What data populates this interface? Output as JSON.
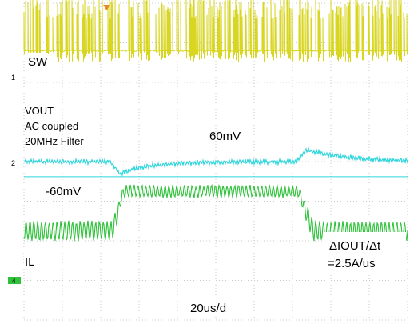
{
  "chart_data": {
    "type": "line",
    "title": "",
    "xlabel": "",
    "ylabel": "",
    "timebase": "20us/d",
    "grid": true,
    "colors": {
      "SW": "#d8d620",
      "VOUT": "#2ad6dc",
      "IL": "#2fc13a",
      "grid": "#c8c8c8",
      "background": "#ffffff"
    },
    "channel_markers": [
      "1",
      "2",
      "4"
    ],
    "series": [
      {
        "name": "SW",
        "signal": "switch node pulses",
        "offset_div": 2.8
      },
      {
        "name": "VOUT",
        "lines": [
          "VOUT",
          "AC coupled",
          "20MHz Filter"
        ],
        "signal": "load transient response",
        "offset_div": 0.0,
        "events": [
          {
            "t_div": 4.5,
            "kind": "undershoot",
            "label": "-60mV",
            "peak_div": -0.3
          },
          {
            "t_div": 14.2,
            "kind": "overshoot",
            "label": "60mV",
            "peak_div": 0.3
          }
        ]
      },
      {
        "name": "IL",
        "signal": "inductor current step",
        "offset_div": -1.75,
        "events": [
          {
            "t_div": 4.6,
            "kind": "rise"
          },
          {
            "t_div": 14.3,
            "kind": "fall"
          }
        ],
        "slew_label": [
          "ΔIOUT/Δt",
          "=2.5A/us"
        ]
      }
    ],
    "reference_line": {
      "label": "-60mV",
      "level_div": -0.3
    }
  }
}
